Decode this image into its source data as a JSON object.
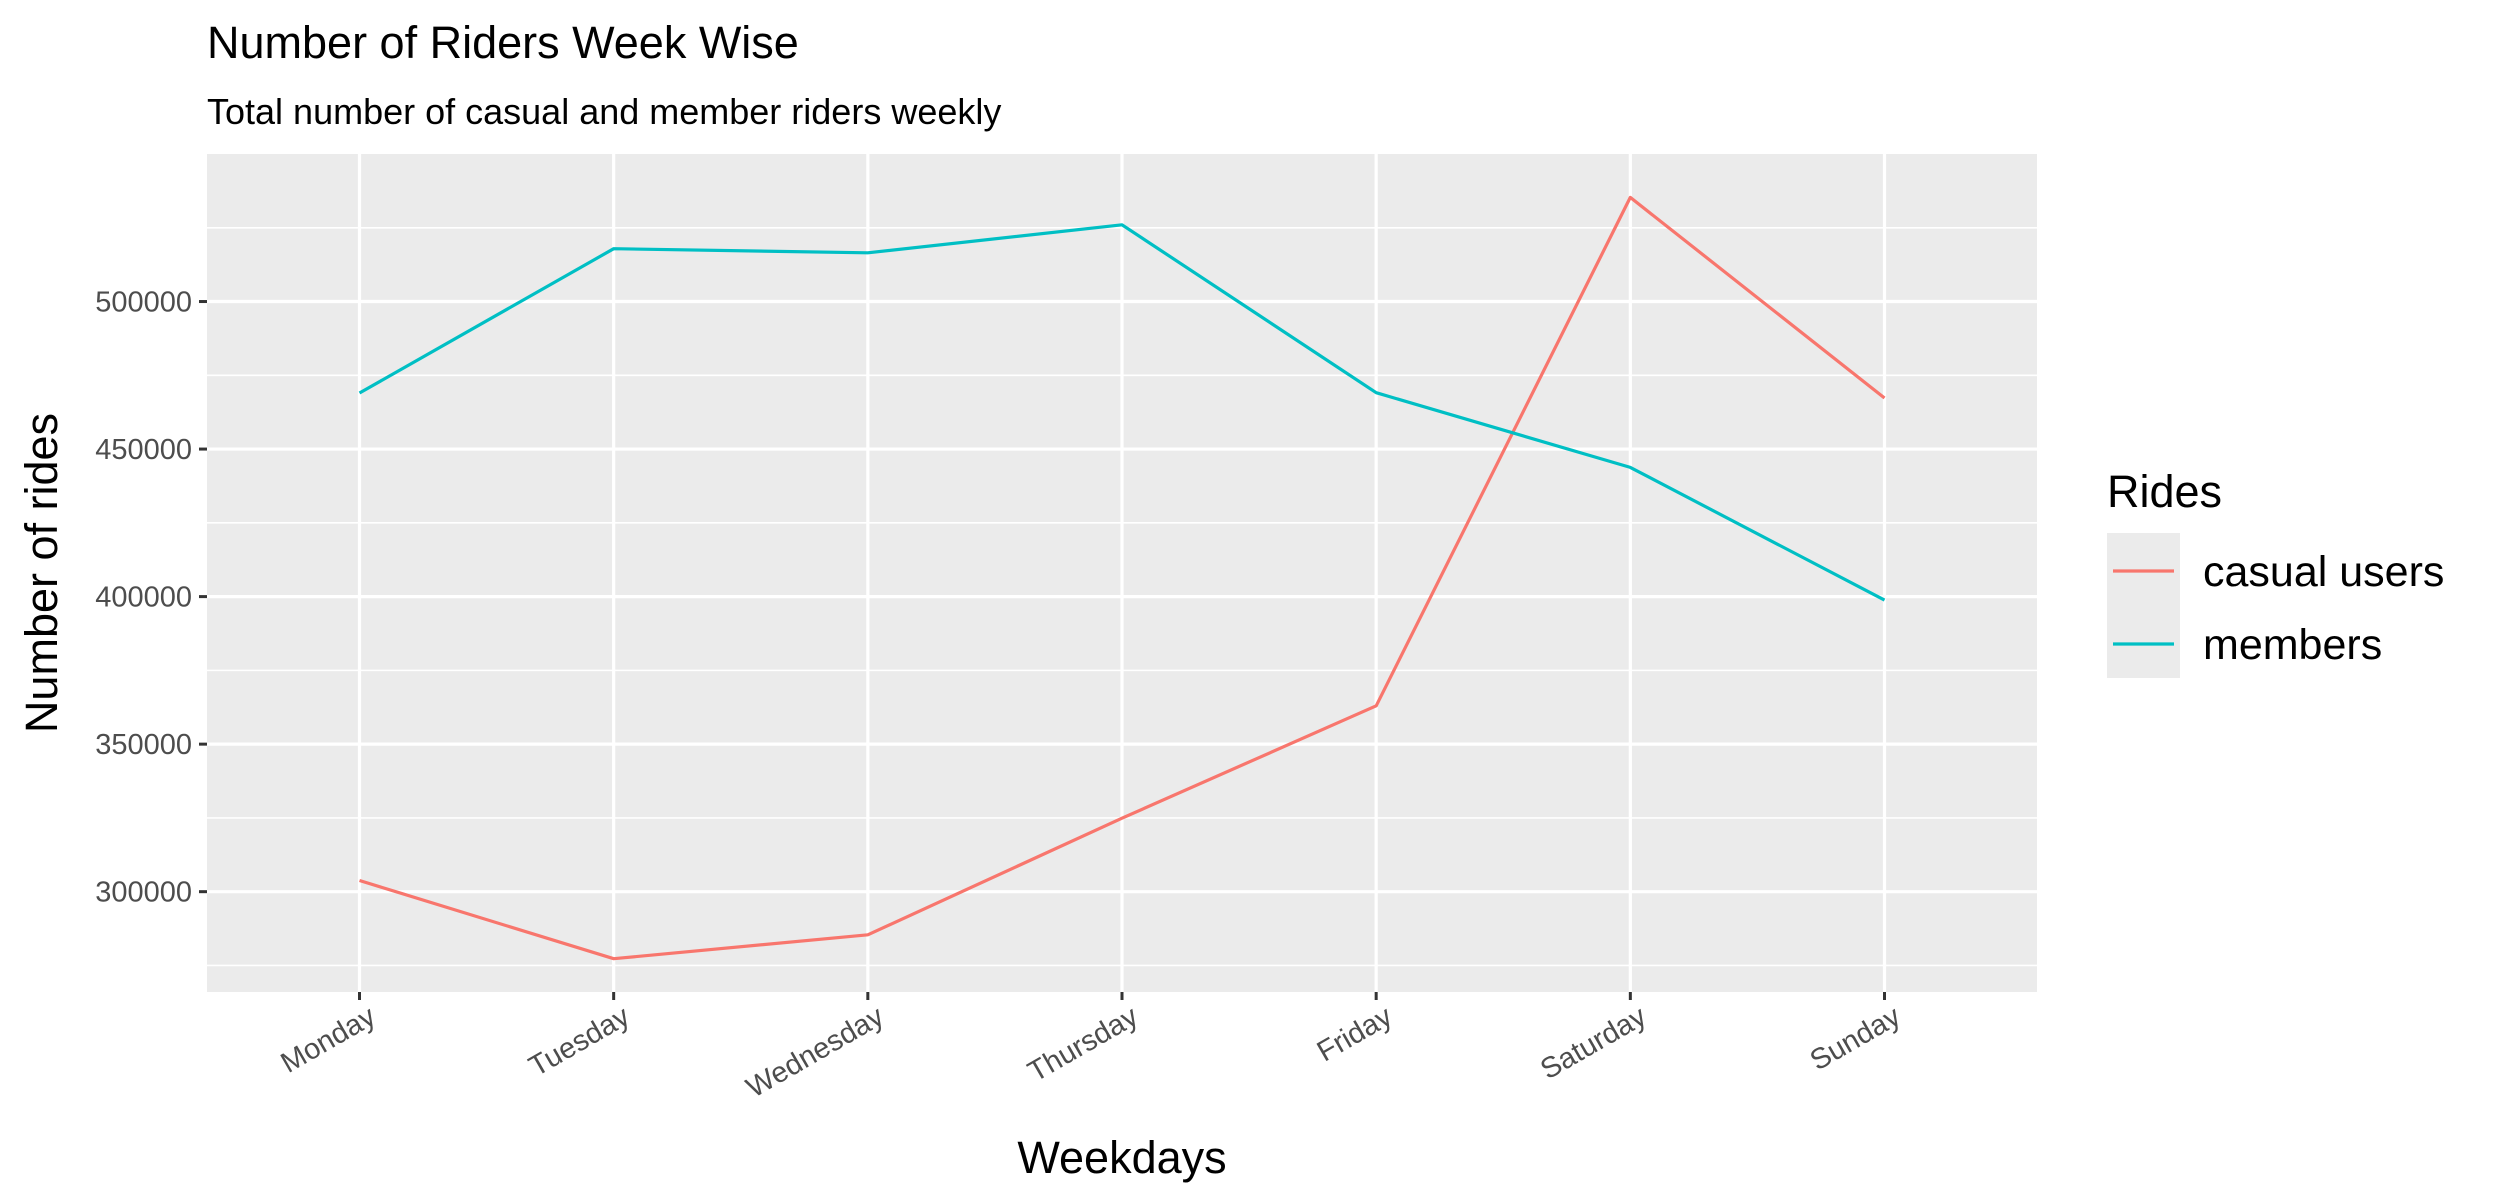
{
  "chart_data": {
    "type": "line",
    "title": "Number of Riders Week Wise",
    "subtitle": "Total number of casual and member riders weekly",
    "xlabel": "Weekdays",
    "ylabel": "Number of rides",
    "categories": [
      "Monday",
      "Tuesday",
      "Wednesday",
      "Thursday",
      "Friday",
      "Saturday",
      "Sunday"
    ],
    "series": [
      {
        "name": "casual users",
        "color": "#F8766D",
        "values": [
          303800,
          277300,
          285400,
          324900,
          363000,
          535300,
          467300
        ]
      },
      {
        "name": "members",
        "color": "#00BFC4",
        "values": [
          469000,
          517900,
          516500,
          526000,
          469100,
          443800,
          398800
        ]
      }
    ],
    "ylim": [
      266000,
      550000
    ],
    "yticks": [
      300000,
      350000,
      400000,
      450000,
      500000
    ],
    "ytick_labels": [
      "300000",
      "350000",
      "400000",
      "450000",
      "500000"
    ],
    "grid": true,
    "panel_background": "#EBEBEB",
    "legend": {
      "title": "Rides",
      "position": "right"
    }
  }
}
